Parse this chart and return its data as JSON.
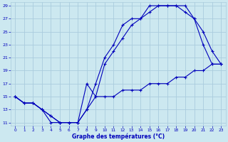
{
  "xlabel": "Graphe des températures (°C)",
  "background_color": "#cce8f0",
  "grid_color": "#aaccdd",
  "line_color": "#0000bb",
  "xlim": [
    -0.5,
    23.5
  ],
  "ylim": [
    10.5,
    29.5
  ],
  "xticks": [
    0,
    1,
    2,
    3,
    4,
    5,
    6,
    7,
    8,
    9,
    10,
    11,
    12,
    13,
    14,
    15,
    16,
    17,
    18,
    19,
    20,
    21,
    22,
    23
  ],
  "yticks": [
    11,
    13,
    15,
    17,
    19,
    21,
    23,
    25,
    27,
    29
  ],
  "line1_y": [
    15,
    14,
    14,
    13,
    11,
    11,
    11,
    11,
    13,
    17,
    21,
    23,
    26,
    27,
    27,
    29,
    29,
    29,
    29,
    29,
    27,
    25,
    22,
    20
  ],
  "line2_y": [
    15,
    14,
    14,
    13,
    12,
    11,
    11,
    11,
    13,
    15,
    20,
    22,
    24,
    26,
    27,
    28,
    29,
    29,
    29,
    28,
    27,
    23,
    20,
    20
  ],
  "line3_y": [
    15,
    14,
    14,
    13,
    12,
    11,
    11,
    11,
    17,
    15,
    15,
    15,
    16,
    16,
    16,
    17,
    17,
    17,
    18,
    18,
    19,
    19,
    20,
    20
  ]
}
